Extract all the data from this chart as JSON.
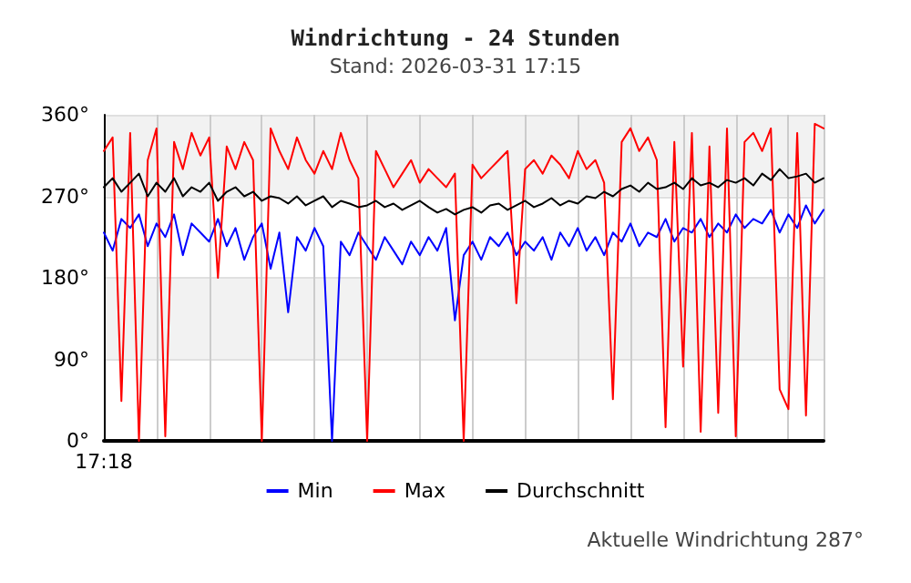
{
  "chart_data": {
    "type": "line",
    "title": "Windrichtung - 24 Stunden",
    "subtitle": "Stand: 2026-03-31 17:15",
    "categories": [
      "17:18",
      null,
      null,
      null,
      null,
      null,
      null,
      null,
      null,
      null,
      null,
      null,
      null,
      null,
      null,
      null,
      null,
      null,
      null,
      null,
      null,
      null,
      null,
      null,
      null,
      null,
      null,
      null,
      null,
      null,
      null,
      null,
      null,
      null,
      null,
      null,
      null,
      null,
      null,
      null,
      null,
      null,
      null,
      null,
      null,
      null,
      null,
      null,
      null,
      null,
      null,
      null,
      null,
      null,
      null,
      null,
      null,
      null,
      null,
      null,
      null,
      null,
      null,
      null,
      null,
      null,
      null,
      null,
      null,
      null,
      null,
      null,
      null,
      null,
      null,
      null,
      null,
      null,
      null,
      null,
      null,
      null,
      null
    ],
    "series": [
      {
        "name": "Min",
        "color": "#0000ff",
        "values": [
          230,
          210,
          245,
          235,
          250,
          215,
          240,
          225,
          250,
          205,
          240,
          230,
          220,
          245,
          215,
          235,
          200,
          225,
          240,
          190,
          230,
          142,
          225,
          210,
          235,
          215,
          0,
          220,
          205,
          230,
          215,
          200,
          225,
          210,
          195,
          220,
          205,
          225,
          210,
          235,
          133,
          205,
          220,
          200,
          225,
          215,
          230,
          205,
          220,
          210,
          225,
          200,
          230,
          215,
          235,
          210,
          225,
          205,
          230,
          220,
          240,
          215,
          230,
          225,
          245,
          220,
          235,
          230,
          245,
          225,
          240,
          230,
          250,
          235,
          245,
          240,
          255,
          230,
          250,
          235,
          260,
          240,
          255
        ]
      },
      {
        "name": "Max",
        "color": "#ff0000",
        "values": [
          320,
          335,
          44,
          340,
          0,
          310,
          345,
          5,
          330,
          300,
          340,
          315,
          335,
          180,
          325,
          300,
          330,
          310,
          0,
          345,
          320,
          300,
          335,
          310,
          295,
          320,
          300,
          340,
          310,
          290,
          0,
          320,
          300,
          280,
          295,
          310,
          285,
          300,
          290,
          280,
          295,
          0,
          305,
          290,
          300,
          310,
          320,
          152,
          300,
          310,
          295,
          315,
          305,
          290,
          320,
          300,
          310,
          285,
          46,
          330,
          345,
          320,
          335,
          310,
          15,
          330,
          82,
          340,
          10,
          325,
          31,
          345,
          5,
          330,
          340,
          320,
          345,
          57,
          35,
          340,
          28,
          350,
          345
        ]
      },
      {
        "name": "Durchschnitt",
        "color": "#000000",
        "values": [
          280,
          290,
          275,
          285,
          295,
          270,
          285,
          275,
          290,
          270,
          280,
          275,
          285,
          265,
          275,
          280,
          270,
          275,
          265,
          270,
          268,
          262,
          270,
          260,
          265,
          270,
          258,
          265,
          262,
          258,
          260,
          265,
          258,
          262,
          255,
          260,
          265,
          258,
          252,
          256,
          250,
          255,
          258,
          252,
          260,
          262,
          255,
          260,
          265,
          258,
          262,
          268,
          260,
          265,
          262,
          270,
          268,
          275,
          270,
          278,
          282,
          275,
          285,
          278,
          280,
          285,
          278,
          290,
          282,
          285,
          280,
          288,
          285,
          290,
          282,
          295,
          288,
          300,
          290,
          292,
          295,
          285,
          290
        ]
      }
    ],
    "ylim": [
      0,
      360
    ],
    "yticks": [
      {
        "value": 0,
        "label": "0°"
      },
      {
        "value": 90,
        "label": "90°"
      },
      {
        "value": 180,
        "label": "180°"
      },
      {
        "value": 270,
        "label": "270°"
      },
      {
        "value": 360,
        "label": "360°"
      }
    ],
    "grid": true,
    "legend": "bottom",
    "marker": "none",
    "line_style": "solid",
    "annotations": [
      "Aktuelle Windrichtung 287°"
    ]
  }
}
